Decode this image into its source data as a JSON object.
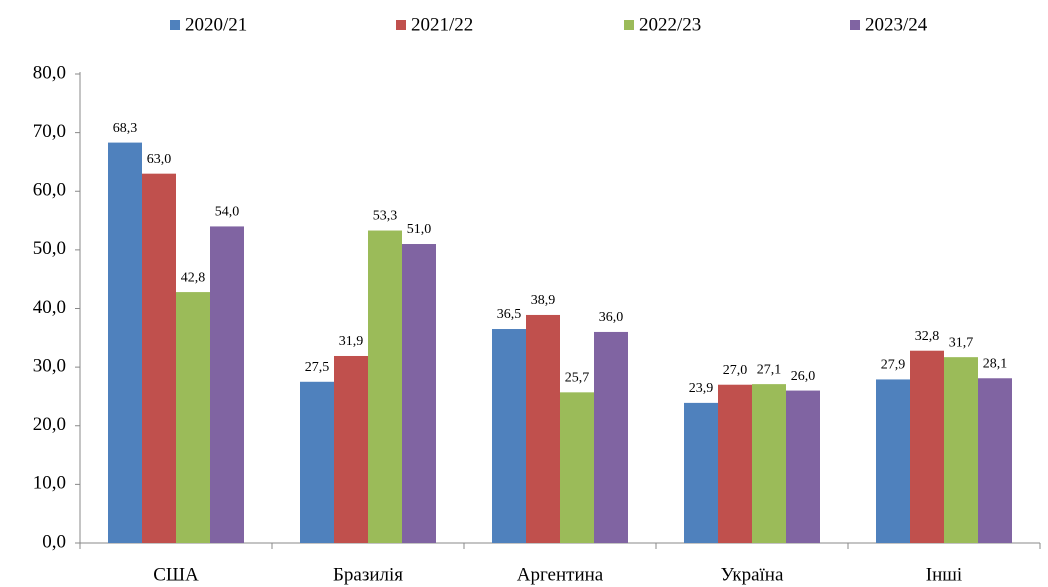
{
  "chart_data": {
    "type": "bar",
    "categories": [
      "США",
      "Бразилія",
      "Аргентина",
      "Україна",
      "Інші"
    ],
    "series": [
      {
        "name": "2020/21",
        "color": "#4f81bd",
        "values": [
          68.3,
          27.5,
          36.5,
          23.9,
          27.9
        ],
        "value_labels": [
          "68,3",
          "27,5",
          "36,5",
          "23,9",
          "27,9"
        ]
      },
      {
        "name": "2021/22",
        "color": "#c0504d",
        "values": [
          63.0,
          31.9,
          38.9,
          27.0,
          32.8
        ],
        "value_labels": [
          "63,0",
          "31,9",
          "38,9",
          "27,0",
          "32,8"
        ]
      },
      {
        "name": "2022/23",
        "color": "#9bbb59",
        "values": [
          42.8,
          53.3,
          25.7,
          27.1,
          31.7
        ],
        "value_labels": [
          "42,8",
          "53,3",
          "25,7",
          "27,1",
          "31,7"
        ]
      },
      {
        "name": "2023/24",
        "color": "#8064a2",
        "values": [
          54.0,
          51.0,
          36.0,
          26.0,
          28.1
        ],
        "value_labels": [
          "54,0",
          "51,0",
          "36,0",
          "26,0",
          "28,1"
        ]
      }
    ],
    "ylim": [
      0,
      80
    ],
    "yticks": [
      {
        "value": 0,
        "label": "0,0"
      },
      {
        "value": 10,
        "label": "10,0"
      },
      {
        "value": 20,
        "label": "20,0"
      },
      {
        "value": 30,
        "label": "30,0"
      },
      {
        "value": 40,
        "label": "40,0"
      },
      {
        "value": 50,
        "label": "50,0"
      },
      {
        "value": 60,
        "label": "60,0"
      },
      {
        "value": 70,
        "label": "70,0"
      },
      {
        "value": 80,
        "label": "80,0"
      }
    ],
    "grid": false,
    "legend": "top"
  }
}
